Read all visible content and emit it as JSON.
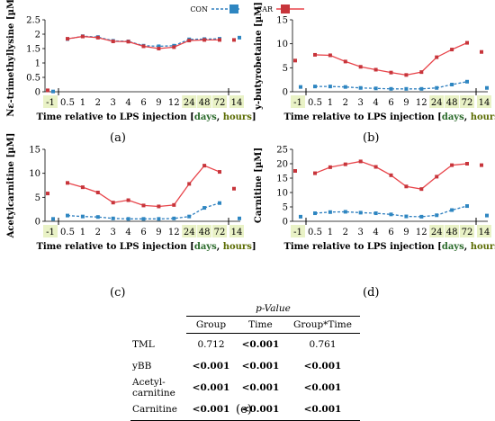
{
  "legend": {
    "con": "CON",
    "car": "CAR"
  },
  "colors": {
    "con": "#2f7fbf",
    "car": "#e8444a",
    "car_marker": "#c7353b",
    "con_marker": "#2e86c1",
    "tick_highlight": "#e9f2c6"
  },
  "chart_data": [
    {
      "type": "line",
      "panel": "(a)",
      "ylabel": "Nε-trimethyllysine [µM]",
      "xlabel_parts": [
        "Time relative to LPS injection [",
        "days",
        ", ",
        "hours",
        "]"
      ],
      "x_ticks": [
        "-1",
        "0.5",
        "1",
        "2",
        "3",
        "4",
        "6",
        "9",
        "12",
        "24",
        "48",
        "72",
        "14"
      ],
      "y_ticks": [
        "0",
        "0.5",
        "1",
        "1.5",
        "2",
        "2.5"
      ],
      "ylim": [
        0,
        2.5
      ],
      "series": [
        {
          "name": "CON",
          "baseline": 0.01,
          "values": [
            1.83,
            1.93,
            1.9,
            1.77,
            1.75,
            1.6,
            1.58,
            1.6,
            1.82,
            1.83,
            1.84
          ],
          "end": 1.88
        },
        {
          "name": "CAR",
          "baseline": 0.05,
          "values": [
            1.84,
            1.92,
            1.88,
            1.75,
            1.74,
            1.58,
            1.5,
            1.55,
            1.78,
            1.8,
            1.8
          ],
          "end": 1.8
        }
      ]
    },
    {
      "type": "line",
      "panel": "(b)",
      "ylabel": "y-butyrobetaine [µM]",
      "xlabel_parts": [
        "Time relative to LPS injection [",
        "days",
        ", ",
        "hours",
        "]"
      ],
      "x_ticks": [
        "-1",
        "0.5",
        "1",
        "2",
        "3",
        "4",
        "6",
        "9",
        "12",
        "24",
        "48",
        "72",
        "14"
      ],
      "y_ticks": [
        "0",
        "5",
        "10",
        "15"
      ],
      "ylim": [
        0,
        15
      ],
      "series": [
        {
          "name": "CON",
          "baseline": 1.0,
          "values": [
            1.1,
            1.1,
            1.0,
            0.8,
            0.7,
            0.6,
            0.6,
            0.6,
            0.8,
            1.5,
            2.1
          ],
          "end": 0.8
        },
        {
          "name": "CAR",
          "baseline": 6.5,
          "values": [
            7.7,
            7.6,
            6.3,
            5.2,
            4.6,
            4.0,
            3.5,
            4.1,
            7.2,
            8.8,
            10.2
          ],
          "end": 8.3
        }
      ]
    },
    {
      "type": "line",
      "panel": "(c)",
      "ylabel": "Acetylcarnitine [µM]",
      "xlabel_parts": [
        "Time relative to LPS injection [",
        "days",
        ", ",
        "hours",
        "]"
      ],
      "x_ticks": [
        "-1",
        "0.5",
        "1",
        "2",
        "3",
        "4",
        "6",
        "9",
        "12",
        "24",
        "48",
        "72",
        "14"
      ],
      "y_ticks": [
        "0",
        "5",
        "10",
        "15"
      ],
      "ylim": [
        0,
        15
      ],
      "series": [
        {
          "name": "CON",
          "baseline": 0.5,
          "values": [
            1.2,
            1.0,
            0.9,
            0.6,
            0.5,
            0.5,
            0.5,
            0.6,
            1.0,
            2.8,
            3.8
          ],
          "end": 0.6
        },
        {
          "name": "CAR",
          "baseline": 5.8,
          "values": [
            8.0,
            7.1,
            6.0,
            3.9,
            4.4,
            3.3,
            3.1,
            3.4,
            7.8,
            11.6,
            10.3
          ],
          "end": 6.8
        }
      ]
    },
    {
      "type": "line",
      "panel": "(d)",
      "ylabel": "Carnitine [µM]",
      "xlabel_parts": [
        "Time relative to LPS injection [",
        "days",
        ", ",
        "hours",
        "]"
      ],
      "x_ticks": [
        "-1",
        "0.5",
        "1",
        "2",
        "3",
        "4",
        "6",
        "9",
        "12",
        "24",
        "48",
        "72",
        "14"
      ],
      "y_ticks": [
        "0",
        "5",
        "10",
        "15",
        "20",
        "25"
      ],
      "ylim": [
        0,
        25
      ],
      "series": [
        {
          "name": "CON",
          "baseline": 1.6,
          "values": [
            2.8,
            3.2,
            3.3,
            3.0,
            2.8,
            2.4,
            1.7,
            1.6,
            2.1,
            3.9,
            5.3
          ],
          "end": 2.0
        },
        {
          "name": "CAR",
          "baseline": 17.5,
          "values": [
            16.7,
            18.8,
            19.8,
            20.8,
            18.9,
            16.0,
            12.1,
            11.2,
            15.5,
            19.5,
            20.0
          ],
          "end": 19.5
        }
      ]
    },
    {
      "type": "table",
      "panel": "(e)",
      "header": "p-Value",
      "columns": [
        "Group",
        "Time",
        "Group*Time"
      ],
      "rows": [
        {
          "label": [
            "TML"
          ],
          "values": [
            "0.712",
            "<0.001",
            "0.761"
          ],
          "bold": [
            false,
            true,
            false
          ]
        },
        {
          "label": [
            "yBB"
          ],
          "values": [
            "<0.001",
            "<0.001",
            "<0.001"
          ],
          "bold": [
            true,
            true,
            true
          ]
        },
        {
          "label": [
            "Acetyl-",
            "carnitine"
          ],
          "values": [
            "<0.001",
            "<0.001",
            "<0.001"
          ],
          "bold": [
            true,
            true,
            true
          ]
        },
        {
          "label": [
            "Carnitine"
          ],
          "values": [
            "<0.001",
            "<0.001",
            "<0.001"
          ],
          "bold": [
            true,
            true,
            true
          ]
        }
      ]
    }
  ]
}
